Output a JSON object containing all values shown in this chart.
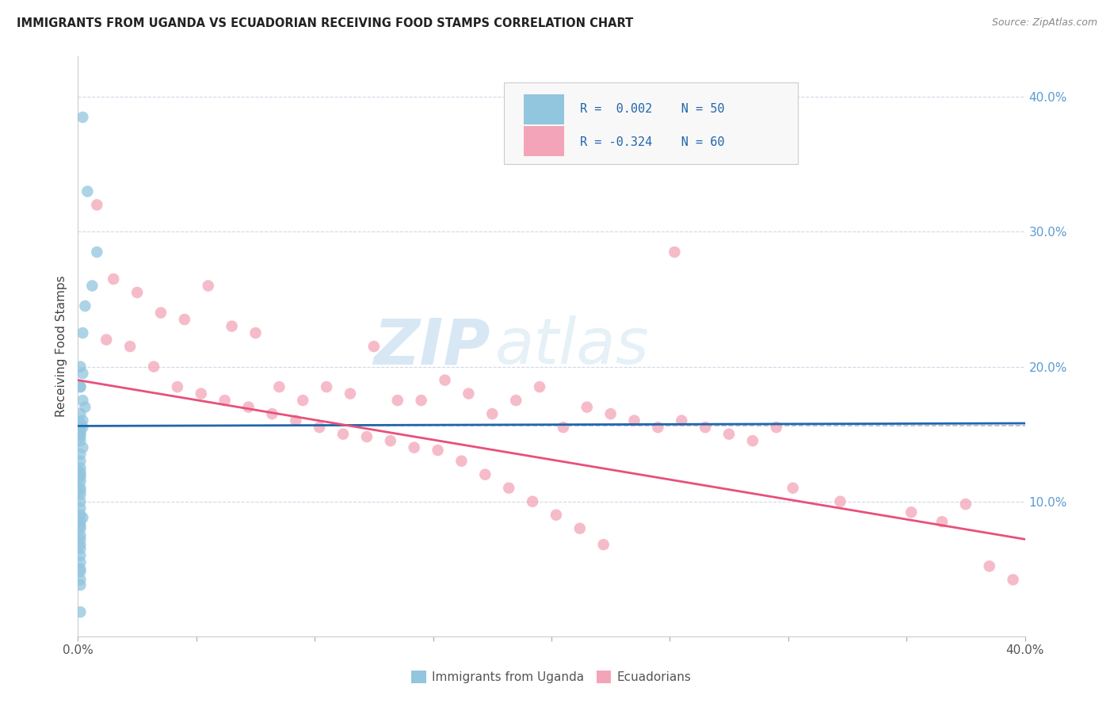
{
  "title": "IMMIGRANTS FROM UGANDA VS ECUADORIAN RECEIVING FOOD STAMPS CORRELATION CHART",
  "source": "Source: ZipAtlas.com",
  "ylabel": "Receiving Food Stamps",
  "legend_label1": "Immigrants from Uganda",
  "legend_label2": "Ecuadorians",
  "R1": 0.002,
  "N1": 50,
  "R2": -0.324,
  "N2": 60,
  "color_blue": "#92c5de",
  "color_pink": "#f4a4b8",
  "color_blue_line": "#2166ac",
  "color_pink_line": "#e8507a",
  "watermark_zip": "ZIP",
  "watermark_atlas": "atlas",
  "right_ytick_vals": [
    0.1,
    0.2,
    0.3,
    0.4
  ],
  "right_ytick_labels": [
    "10.0%",
    "20.0%",
    "30.0%",
    "40.0%"
  ],
  "xlim": [
    0.0,
    0.4
  ],
  "ylim": [
    0.0,
    0.43
  ],
  "blue_line_y0": 0.156,
  "blue_line_y1": 0.158,
  "pink_line_y0": 0.19,
  "pink_line_y1": 0.072,
  "dashed_line_y": 0.156,
  "uganda_x": [
    0.002,
    0.004,
    0.008,
    0.006,
    0.003,
    0.002,
    0.001,
    0.002,
    0.001,
    0.001,
    0.002,
    0.003,
    0.001,
    0.002,
    0.001,
    0.001,
    0.002,
    0.001,
    0.001,
    0.001,
    0.001,
    0.002,
    0.001,
    0.001,
    0.001,
    0.001,
    0.001,
    0.001,
    0.001,
    0.001,
    0.001,
    0.001,
    0.001,
    0.001,
    0.001,
    0.002,
    0.001,
    0.001,
    0.001,
    0.001,
    0.001,
    0.001,
    0.001,
    0.001,
    0.001,
    0.001,
    0.001,
    0.001,
    0.001,
    0.001
  ],
  "uganda_y": [
    0.385,
    0.33,
    0.285,
    0.26,
    0.245,
    0.225,
    0.2,
    0.195,
    0.185,
    0.185,
    0.175,
    0.17,
    0.165,
    0.16,
    0.158,
    0.155,
    0.155,
    0.152,
    0.15,
    0.148,
    0.145,
    0.14,
    0.135,
    0.13,
    0.125,
    0.122,
    0.12,
    0.118,
    0.115,
    0.11,
    0.108,
    0.105,
    0.1,
    0.095,
    0.09,
    0.088,
    0.085,
    0.082,
    0.08,
    0.075,
    0.072,
    0.068,
    0.065,
    0.06,
    0.055,
    0.05,
    0.048,
    0.042,
    0.038,
    0.018
  ],
  "ecuador_x": [
    0.008,
    0.015,
    0.025,
    0.035,
    0.045,
    0.055,
    0.065,
    0.075,
    0.085,
    0.095,
    0.105,
    0.115,
    0.125,
    0.135,
    0.145,
    0.155,
    0.165,
    0.175,
    0.185,
    0.195,
    0.205,
    0.215,
    0.225,
    0.235,
    0.245,
    0.255,
    0.265,
    0.275,
    0.285,
    0.295,
    0.012,
    0.022,
    0.032,
    0.042,
    0.052,
    0.062,
    0.072,
    0.082,
    0.092,
    0.102,
    0.112,
    0.122,
    0.132,
    0.142,
    0.152,
    0.162,
    0.172,
    0.182,
    0.192,
    0.202,
    0.212,
    0.222,
    0.302,
    0.322,
    0.352,
    0.365,
    0.375,
    0.385,
    0.395,
    0.252
  ],
  "ecuador_y": [
    0.32,
    0.265,
    0.255,
    0.24,
    0.235,
    0.26,
    0.23,
    0.225,
    0.185,
    0.175,
    0.185,
    0.18,
    0.215,
    0.175,
    0.175,
    0.19,
    0.18,
    0.165,
    0.175,
    0.185,
    0.155,
    0.17,
    0.165,
    0.16,
    0.155,
    0.16,
    0.155,
    0.15,
    0.145,
    0.155,
    0.22,
    0.215,
    0.2,
    0.185,
    0.18,
    0.175,
    0.17,
    0.165,
    0.16,
    0.155,
    0.15,
    0.148,
    0.145,
    0.14,
    0.138,
    0.13,
    0.12,
    0.11,
    0.1,
    0.09,
    0.08,
    0.068,
    0.11,
    0.1,
    0.092,
    0.085,
    0.098,
    0.052,
    0.042,
    0.285
  ]
}
